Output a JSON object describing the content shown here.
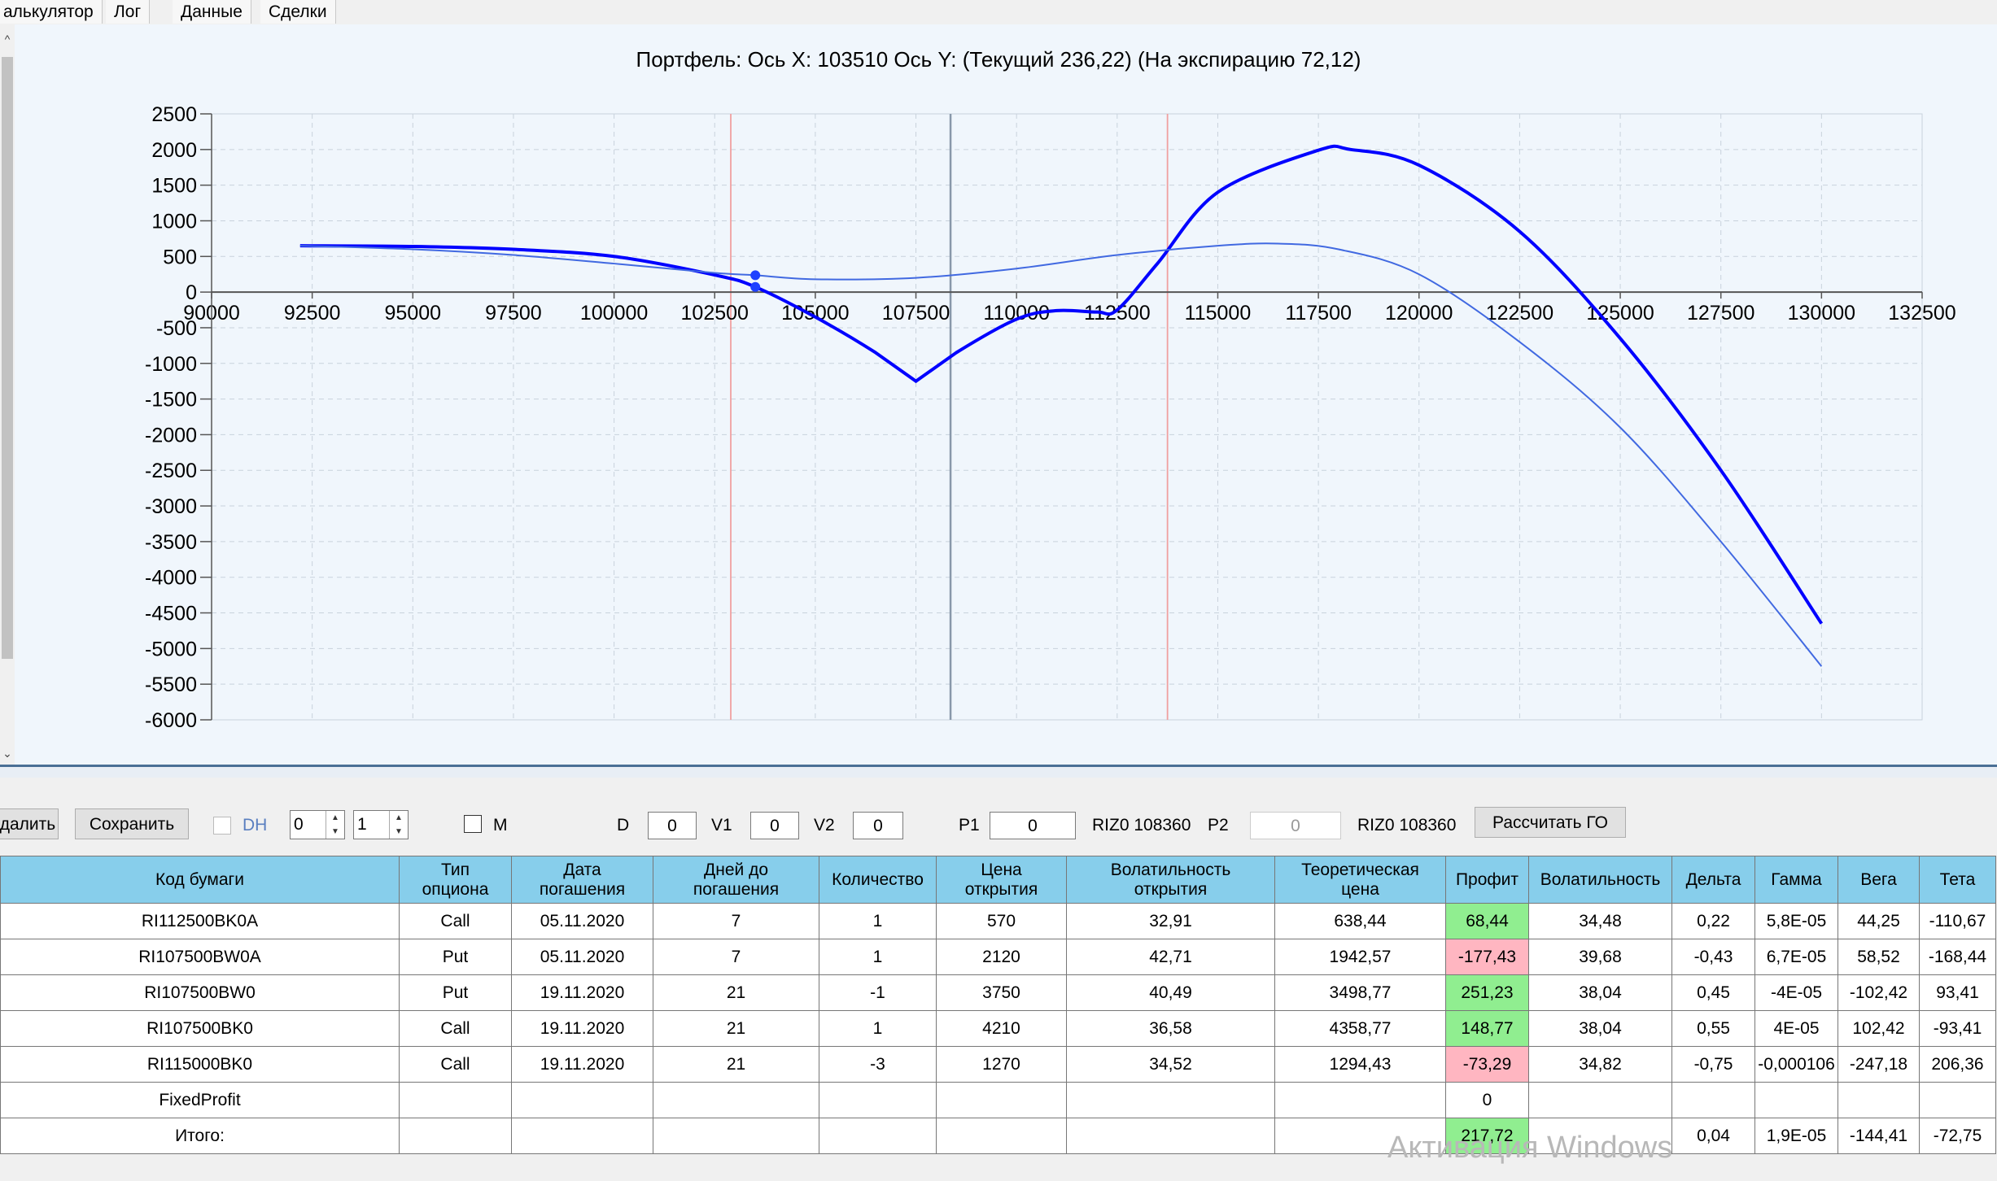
{
  "tabs": [
    "алькулятор",
    "Лог",
    "Данные",
    "Сделки"
  ],
  "chart_title": "Портфель:  Ось X:  103510  Ось Y:   (Текущий 236,22)   (На экспирацию  72,12)",
  "chart_data": {
    "type": "line",
    "xlim": [
      90000,
      132500
    ],
    "ylim": [
      -6000,
      2500
    ],
    "x_ticks": [
      "90000",
      "92500",
      "95000",
      "97500",
      "100000",
      "102500",
      "105000",
      "107500",
      "110000",
      "112500",
      "115000",
      "117500",
      "120000",
      "122500",
      "125000",
      "127500",
      "130000",
      "132500"
    ],
    "y_ticks": [
      "2500",
      "2000",
      "1500",
      "1000",
      "500",
      "0",
      "-500",
      "-1000",
      "-1500",
      "-2000",
      "-2500",
      "-3000",
      "-3500",
      "-4000",
      "-4500",
      "-5000",
      "-5500",
      "-6000"
    ],
    "vertical_lines": [
      {
        "x": 102900,
        "color": "#f0a0a0"
      },
      {
        "x": 108360,
        "color": "#8898aa"
      },
      {
        "x": 113750,
        "color": "#f0a0a0"
      }
    ],
    "markers": [
      {
        "x": 103510,
        "y": 236
      },
      {
        "x": 103510,
        "y": 72
      }
    ],
    "series": [
      {
        "color": "#0000ff",
        "width": 4,
        "x": [
          92200,
          95000,
          97500,
          100000,
          102500,
          103510,
          105000,
          106500,
          107500,
          108500,
          110000,
          111000,
          112000,
          112500,
          113500,
          115000,
          117500,
          118300,
          120000,
          122500,
          125000,
          127500,
          130000
        ],
        "y": [
          650,
          640,
          600,
          500,
          240,
          72,
          -350,
          -850,
          -1250,
          -850,
          -380,
          -260,
          -280,
          -250,
          400,
          1400,
          1990,
          2000,
          1780,
          850,
          -650,
          -2500,
          -4650
        ]
      },
      {
        "color": "#4169e1",
        "width": 2,
        "x": [
          92200,
          95000,
          97500,
          100000,
          102500,
          103510,
          105000,
          107500,
          110000,
          112500,
          115000,
          116500,
          118000,
          120000,
          122500,
          125000,
          127500,
          130000
        ],
        "y": [
          650,
          600,
          520,
          400,
          270,
          236,
          180,
          200,
          330,
          520,
          650,
          680,
          600,
          250,
          -700,
          -1900,
          -3500,
          -5250
        ]
      }
    ]
  },
  "toolbar": {
    "delete": "далить",
    "save": "Сохранить",
    "dh_label": "DH",
    "spin1": "0",
    "spin2": "1",
    "m_label": "M",
    "d_label": "D",
    "d_val": "0",
    "v1_label": "V1",
    "v1_val": "0",
    "v2_label": "V2",
    "v2_val": "0",
    "p1_label": "P1",
    "p1_val": "0",
    "riz_1": "RIZ0 108360",
    "p2_label": "P2",
    "p2_val": "0",
    "riz_2": "RIZ0 108360",
    "calc_go": "Рассчитать ГО"
  },
  "table": {
    "headers": [
      "Код бумаги",
      "Тип\nопциона",
      "Дата\nпогашения",
      "Дней до\nпогашения",
      "Количество",
      "Цена\nоткрытия",
      "Волатильность\nоткрытия",
      "Теоретическая\nцена",
      "Профит",
      "Волатильность",
      "Дельта",
      "Гамма",
      "Вега",
      "Тета"
    ],
    "rows": [
      [
        "RI112500BK0A",
        "Call",
        "05.11.2020",
        "7",
        "1",
        "570",
        "32,91",
        "638,44",
        "68,44",
        "34,48",
        "0,22",
        "5,8E-05",
        "44,25",
        "-110,67"
      ],
      [
        "RI107500BW0A",
        "Put",
        "05.11.2020",
        "7",
        "1",
        "2120",
        "42,71",
        "1942,57",
        "-177,43",
        "39,68",
        "-0,43",
        "6,7E-05",
        "58,52",
        "-168,44"
      ],
      [
        "RI107500BW0",
        "Put",
        "19.11.2020",
        "21",
        "-1",
        "3750",
        "40,49",
        "3498,77",
        "251,23",
        "38,04",
        "0,45",
        "-4E-05",
        "-102,42",
        "93,41"
      ],
      [
        "RI107500BK0",
        "Call",
        "19.11.2020",
        "21",
        "1",
        "4210",
        "36,58",
        "4358,77",
        "148,77",
        "38,04",
        "0,55",
        "4E-05",
        "102,42",
        "-93,41"
      ],
      [
        "RI115000BK0",
        "Call",
        "19.11.2020",
        "21",
        "-3",
        "1270",
        "34,52",
        "1294,43",
        "-73,29",
        "34,82",
        "-0,75",
        "-0,000106",
        "-247,18",
        "206,36"
      ],
      [
        "FixedProfit",
        "",
        "",
        "",
        "",
        "",
        "",
        "",
        "0",
        "",
        "",
        "",
        "",
        ""
      ],
      [
        "Итого:",
        "",
        "",
        "",
        "",
        "",
        "",
        "",
        "217,72",
        "",
        "0,04",
        "1,9E-05",
        "-144,41",
        "-72,75"
      ]
    ],
    "profit_status": [
      "pos",
      "neg",
      "pos",
      "pos",
      "neg",
      "",
      "pos"
    ]
  },
  "watermark": "Активация Windows"
}
